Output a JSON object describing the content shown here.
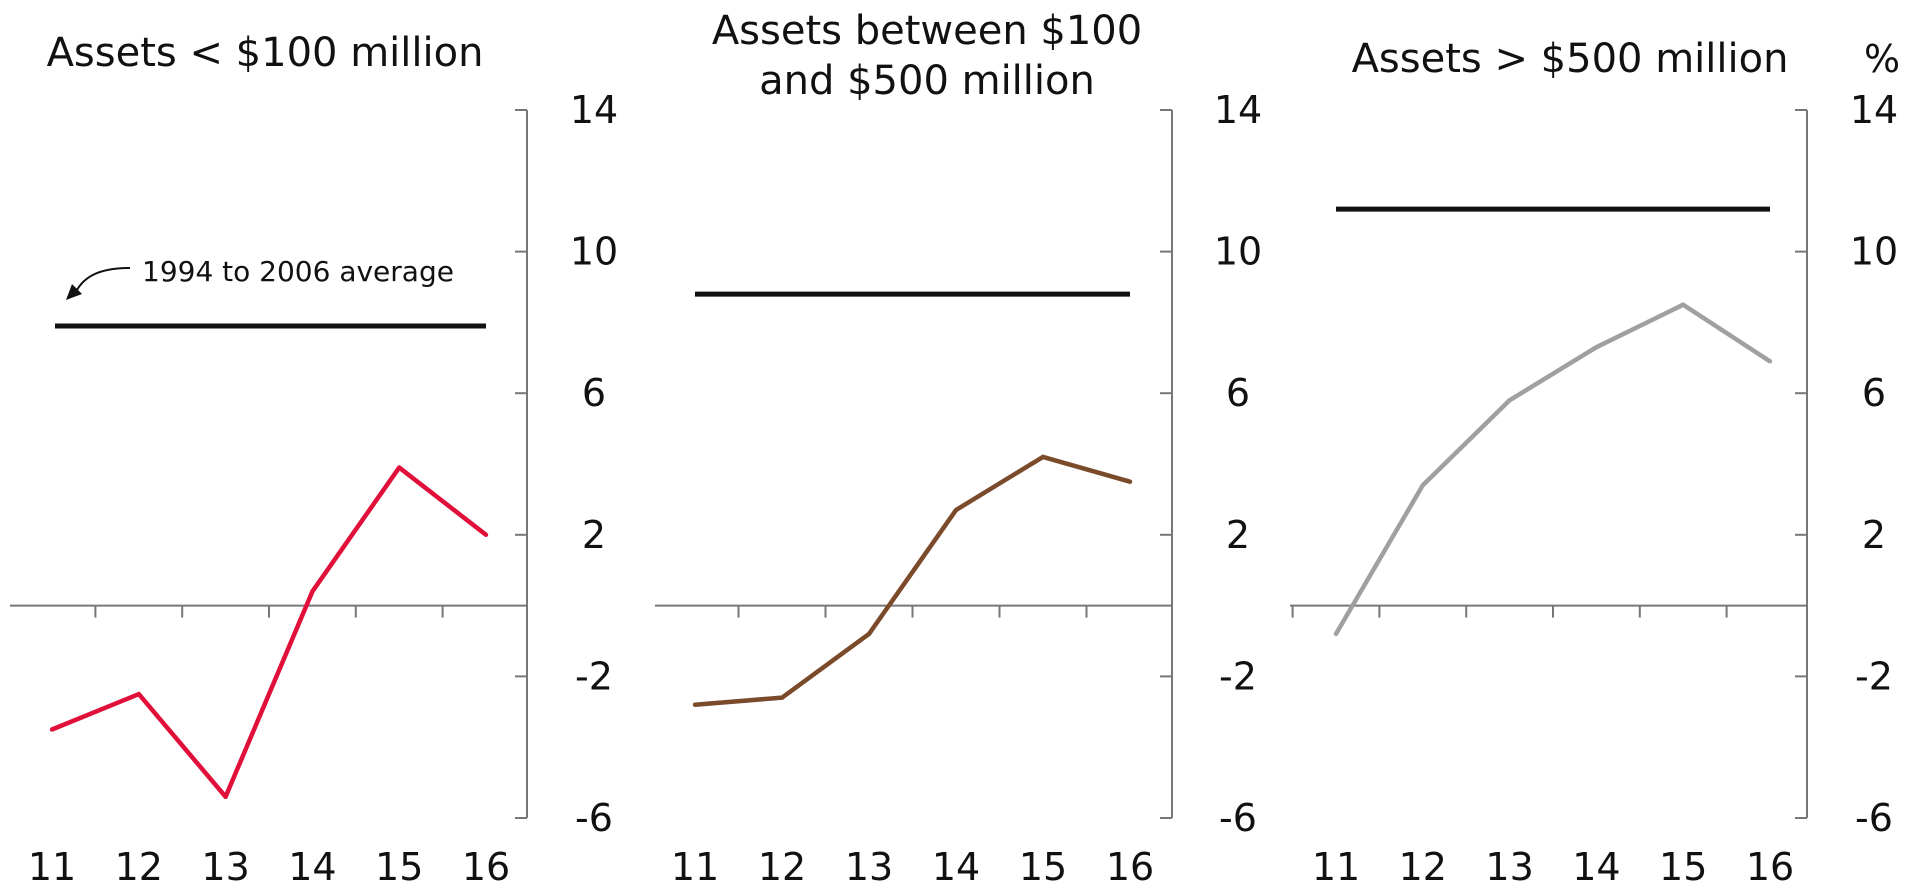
{
  "chart_data": [
    {
      "type": "line",
      "title": "Assets < $100 million",
      "categories": [
        "11",
        "12",
        "13",
        "14",
        "15",
        "16"
      ],
      "series": [
        {
          "values": [
            -3.5,
            -2.5,
            -5.4,
            0.4,
            3.9,
            2.0
          ],
          "color": "#e0103a"
        }
      ],
      "reference": {
        "label": "1994 to 2006 average",
        "value": 7.9
      },
      "y_ticks": [
        "14",
        "10",
        "6",
        "2",
        "-2",
        "-6"
      ],
      "ylim": [
        -6,
        14
      ],
      "grid": false
    },
    {
      "type": "line",
      "title": "Assets between $100 and $500 million",
      "title_lines": [
        "Assets between $100",
        "and $500 million"
      ],
      "categories": [
        "11",
        "12",
        "13",
        "14",
        "15",
        "16"
      ],
      "series": [
        {
          "values": [
            -2.8,
            -2.6,
            -0.8,
            2.7,
            4.2,
            3.5
          ],
          "color": "#7a4a2a"
        }
      ],
      "reference": {
        "value": 8.8
      },
      "y_ticks": [
        "14",
        "10",
        "6",
        "2",
        "-2",
        "-6"
      ],
      "ylim": [
        -6,
        14
      ],
      "grid": false
    },
    {
      "type": "line",
      "title": "Assets > $500 million",
      "unit": "%",
      "categories": [
        "11",
        "12",
        "13",
        "14",
        "15",
        "16"
      ],
      "series": [
        {
          "values": [
            -0.8,
            3.4,
            5.8,
            7.3,
            8.5,
            6.9
          ],
          "color": "#a0a0a0"
        }
      ],
      "reference": {
        "value": 11.2
      },
      "y_ticks": [
        "14",
        "10",
        "6",
        "2",
        "-2",
        "-6"
      ],
      "ylim": [
        -6,
        14
      ],
      "grid": false
    }
  ]
}
